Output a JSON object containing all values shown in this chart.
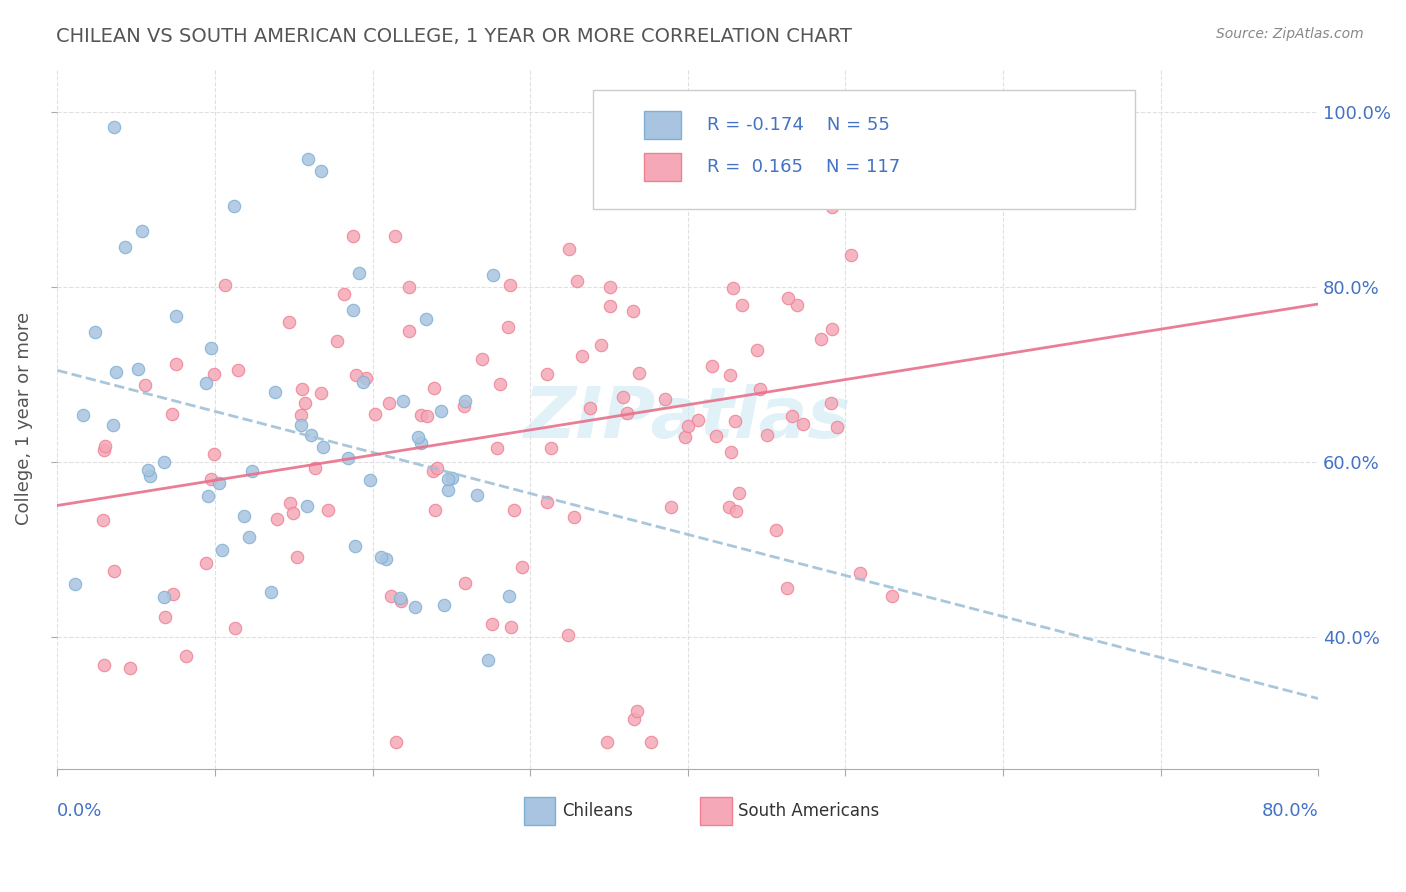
{
  "title": "CHILEAN VS SOUTH AMERICAN COLLEGE, 1 YEAR OR MORE CORRELATION CHART",
  "source": "Source: ZipAtlas.com",
  "ylabel": "College, 1 year or more",
  "xlim": [
    0.0,
    0.8
  ],
  "ylim": [
    0.25,
    1.05
  ],
  "yticks": [
    0.4,
    0.6,
    0.8,
    1.0
  ],
  "ytick_labels": [
    "40.0%",
    "60.0%",
    "80.0%",
    "100.0%"
  ],
  "color_chilean": "#a8c4e0",
  "color_sa": "#f4a8b8",
  "edge_color_chilean": "#7eb0d4",
  "edge_color_sa": "#f08090",
  "line_color_chilean": "#a0c0d8",
  "line_color_sa": "#e8708a",
  "watermark": "ZIPatlas",
  "bg_color": "#ffffff",
  "grid_color": "#e0e0e0",
  "text_color_blue": "#4472c4",
  "title_color": "#555555",
  "source_color": "#888888"
}
